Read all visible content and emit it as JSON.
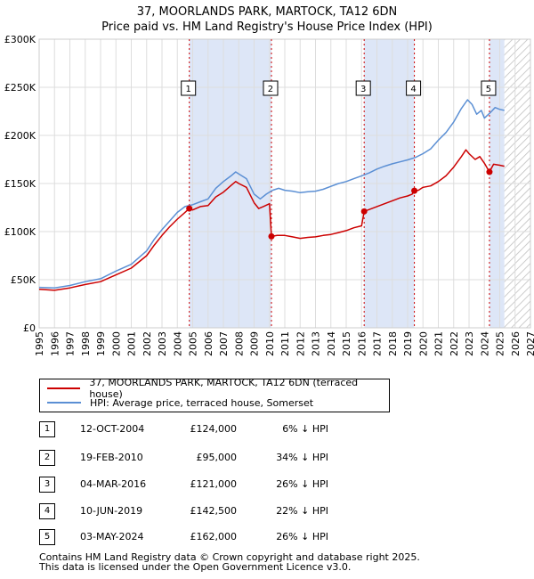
{
  "title": {
    "line1": "37, MOORLANDS PARK, MARTOCK, TA12 6DN",
    "line2": "Price paid vs. HM Land Registry's House Price Index (HPI)"
  },
  "chart_data": {
    "type": "line",
    "x_range": [
      1995,
      2027
    ],
    "ylim": [
      0,
      300000
    ],
    "y_ticks": [
      0,
      50000,
      100000,
      150000,
      200000,
      250000,
      300000
    ],
    "y_tick_labels": [
      "£0",
      "£50K",
      "£100K",
      "£150K",
      "£200K",
      "£250K",
      "£300K"
    ],
    "x_ticks": [
      1995,
      1996,
      1997,
      1998,
      1999,
      2000,
      2001,
      2002,
      2003,
      2004,
      2005,
      2006,
      2007,
      2008,
      2009,
      2010,
      2011,
      2012,
      2013,
      2014,
      2015,
      2016,
      2017,
      2018,
      2019,
      2020,
      2021,
      2022,
      2023,
      2024,
      2025,
      2026,
      2027
    ],
    "x_tick_labels": [
      "1995",
      "1996",
      "1997",
      "1998",
      "1999",
      "2000",
      "2001",
      "2002",
      "2003",
      "2004",
      "2005",
      "2006",
      "2007",
      "2008",
      "2009",
      "2010",
      "2011",
      "2012",
      "2013",
      "2014",
      "2015",
      "2016",
      "2017",
      "2018",
      "2019",
      "2020",
      "2021",
      "2022",
      "2023",
      "2024",
      "2025",
      "2026",
      "2027"
    ],
    "shaded_spans": [
      [
        2004.78,
        2010.13
      ],
      [
        2016.17,
        2019.44
      ],
      [
        2024.33,
        2025.3
      ]
    ],
    "hatch_from": 2025.3,
    "colors": {
      "price": "#cc0000",
      "hpi": "#5b8fd4",
      "shade": "#dde6f7",
      "sale_line": "#cc0000"
    },
    "series": [
      {
        "name": "37, MOORLANDS PARK, MARTOCK, TA12 6DN (terraced house)",
        "color": "#cc0000",
        "points": [
          [
            1995.0,
            40000
          ],
          [
            1996.0,
            39000
          ],
          [
            1997.0,
            41500
          ],
          [
            1998.0,
            45000
          ],
          [
            1999.0,
            48000
          ],
          [
            2000.0,
            55000
          ],
          [
            2001.0,
            62000
          ],
          [
            2002.0,
            75000
          ],
          [
            2002.5,
            86000
          ],
          [
            2003.0,
            96000
          ],
          [
            2003.5,
            105000
          ],
          [
            2004.0,
            113000
          ],
          [
            2004.5,
            120000
          ],
          [
            2004.78,
            124000
          ],
          [
            2005.0,
            122500
          ],
          [
            2005.5,
            126000
          ],
          [
            2006.0,
            127000
          ],
          [
            2006.5,
            136000
          ],
          [
            2007.0,
            141000
          ],
          [
            2007.5,
            148000
          ],
          [
            2007.8,
            152000
          ],
          [
            2008.0,
            150000
          ],
          [
            2008.5,
            146000
          ],
          [
            2009.0,
            130000
          ],
          [
            2009.3,
            124000
          ],
          [
            2009.6,
            126000
          ],
          [
            2010.0,
            129000
          ],
          [
            2010.13,
            95000
          ],
          [
            2010.5,
            96000
          ],
          [
            2011.0,
            96000
          ],
          [
            2011.5,
            94500
          ],
          [
            2012.0,
            93000
          ],
          [
            2012.5,
            94000
          ],
          [
            2013.0,
            94500
          ],
          [
            2013.5,
            96000
          ],
          [
            2014.0,
            97000
          ],
          [
            2014.5,
            99000
          ],
          [
            2015.0,
            101000
          ],
          [
            2015.5,
            104000
          ],
          [
            2016.0,
            106000
          ],
          [
            2016.17,
            121000
          ],
          [
            2016.5,
            123000
          ],
          [
            2017.0,
            126000
          ],
          [
            2017.5,
            129000
          ],
          [
            2018.0,
            132000
          ],
          [
            2018.5,
            135000
          ],
          [
            2019.0,
            137000
          ],
          [
            2019.3,
            139000
          ],
          [
            2019.44,
            142500
          ],
          [
            2019.7,
            143000
          ],
          [
            2020.0,
            146000
          ],
          [
            2020.5,
            147500
          ],
          [
            2021.0,
            152000
          ],
          [
            2021.5,
            158000
          ],
          [
            2022.0,
            167000
          ],
          [
            2022.5,
            178000
          ],
          [
            2022.8,
            185000
          ],
          [
            2023.0,
            181000
          ],
          [
            2023.4,
            175000
          ],
          [
            2023.7,
            178000
          ],
          [
            2024.0,
            171000
          ],
          [
            2024.33,
            162000
          ],
          [
            2024.6,
            170000
          ],
          [
            2025.0,
            169000
          ],
          [
            2025.3,
            168000
          ]
        ]
      },
      {
        "name": "HPI: Average price, terraced house, Somerset",
        "color": "#5b8fd4",
        "points": [
          [
            1995.0,
            42000
          ],
          [
            1996.0,
            41500
          ],
          [
            1997.0,
            44000
          ],
          [
            1998.0,
            48000
          ],
          [
            1999.0,
            51000
          ],
          [
            2000.0,
            59000
          ],
          [
            2001.0,
            66000
          ],
          [
            2002.0,
            80000
          ],
          [
            2002.5,
            92000
          ],
          [
            2003.0,
            102000
          ],
          [
            2003.5,
            111000
          ],
          [
            2004.0,
            120000
          ],
          [
            2004.5,
            126000
          ],
          [
            2005.0,
            128000
          ],
          [
            2005.5,
            131000
          ],
          [
            2006.0,
            134000
          ],
          [
            2006.5,
            145000
          ],
          [
            2007.0,
            152000
          ],
          [
            2007.5,
            158000
          ],
          [
            2007.8,
            162000
          ],
          [
            2008.0,
            160000
          ],
          [
            2008.5,
            155000
          ],
          [
            2009.0,
            139000
          ],
          [
            2009.4,
            134000
          ],
          [
            2009.8,
            139000
          ],
          [
            2010.2,
            143000
          ],
          [
            2010.6,
            145000
          ],
          [
            2011.0,
            143000
          ],
          [
            2011.5,
            142000
          ],
          [
            2012.0,
            140500
          ],
          [
            2012.5,
            141500
          ],
          [
            2013.0,
            142000
          ],
          [
            2013.5,
            144000
          ],
          [
            2014.0,
            147000
          ],
          [
            2014.5,
            150000
          ],
          [
            2015.0,
            152000
          ],
          [
            2015.5,
            155000
          ],
          [
            2016.0,
            158000
          ],
          [
            2016.5,
            161000
          ],
          [
            2017.0,
            165000
          ],
          [
            2017.5,
            168000
          ],
          [
            2018.0,
            170500
          ],
          [
            2018.5,
            172500
          ],
          [
            2019.0,
            174500
          ],
          [
            2019.5,
            177000
          ],
          [
            2020.0,
            181000
          ],
          [
            2020.5,
            186000
          ],
          [
            2021.0,
            195000
          ],
          [
            2021.5,
            203000
          ],
          [
            2022.0,
            214000
          ],
          [
            2022.5,
            228000
          ],
          [
            2022.9,
            237000
          ],
          [
            2023.2,
            232000
          ],
          [
            2023.5,
            222000
          ],
          [
            2023.8,
            226000
          ],
          [
            2024.0,
            218000
          ],
          [
            2024.4,
            224000
          ],
          [
            2024.7,
            229000
          ],
          [
            2025.0,
            227000
          ],
          [
            2025.3,
            226000
          ]
        ]
      }
    ],
    "sales": [
      {
        "label": "1",
        "date": "12-OCT-2004",
        "year": 2004.78,
        "price": 124000,
        "price_text": "£124,000",
        "hpi": "6% ↓ HPI"
      },
      {
        "label": "2",
        "date": "19-FEB-2010",
        "year": 2010.13,
        "price": 95000,
        "price_text": "£95,000",
        "hpi": "34% ↓ HPI"
      },
      {
        "label": "3",
        "date": "04-MAR-2016",
        "year": 2016.17,
        "price": 121000,
        "price_text": "£121,000",
        "hpi": "26% ↓ HPI"
      },
      {
        "label": "4",
        "date": "10-JUN-2019",
        "year": 2019.44,
        "price": 142500,
        "price_text": "£142,500",
        "hpi": "22% ↓ HPI"
      },
      {
        "label": "5",
        "date": "03-MAY-2024",
        "year": 2024.33,
        "price": 162000,
        "price_text": "£162,000",
        "hpi": "26% ↓ HPI"
      }
    ],
    "marker_value": 250000
  },
  "legend": {
    "price_label": "37, MOORLANDS PARK, MARTOCK, TA12 6DN (terraced house)",
    "hpi_label": "HPI: Average price, terraced house, Somerset"
  },
  "footer": {
    "line1": "Contains HM Land Registry data © Crown copyright and database right 2025.",
    "line2": "This data is licensed under the Open Government Licence v3.0."
  }
}
